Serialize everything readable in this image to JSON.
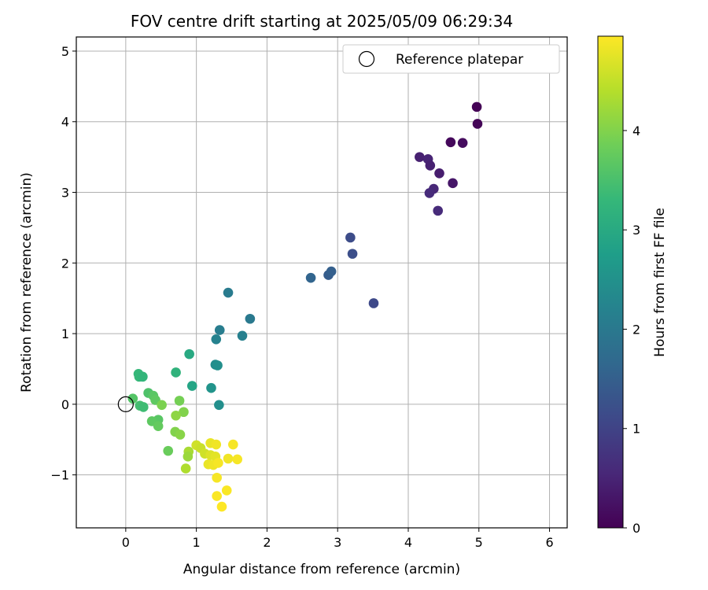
{
  "chart_data": {
    "type": "scatter",
    "title": "FOV centre drift starting at 2025/05/09 06:29:34",
    "xlabel": "Angular distance from reference (arcmin)",
    "ylabel": "Rotation from reference (arcmin)",
    "xlim": [
      -0.7,
      6.25
    ],
    "ylim": [
      -1.75,
      5.2
    ],
    "x_ticks": [
      0,
      1,
      2,
      3,
      4,
      5,
      6
    ],
    "y_ticks": [
      -1,
      0,
      1,
      2,
      3,
      4,
      5
    ],
    "y_tick_labels": [
      "−1",
      "0",
      "1",
      "2",
      "3",
      "4",
      "5"
    ],
    "grid": true,
    "legend": {
      "position": "top-right",
      "label": "Reference platepar"
    },
    "reference_point": {
      "x": 0,
      "y": 0
    },
    "colorbar": {
      "label": "Hours from first FF file",
      "range": [
        0,
        4.95
      ],
      "ticks": [
        0,
        1,
        2,
        3,
        4
      ],
      "colormap": [
        "#440154",
        "#482878",
        "#3e4989",
        "#31688e",
        "#26828e",
        "#1f9e89",
        "#35b779",
        "#6ece58",
        "#b5de2b",
        "#fde725"
      ]
    },
    "series": [
      {
        "points": [
          {
            "x": 4.97,
            "y": 4.21,
            "hours": 0.02
          },
          {
            "x": 4.98,
            "y": 3.97,
            "hours": 0.05
          },
          {
            "x": 4.6,
            "y": 3.71,
            "hours": 0.1
          },
          {
            "x": 4.77,
            "y": 3.7,
            "hours": 0.15
          },
          {
            "x": 4.16,
            "y": 3.5,
            "hours": 0.45
          },
          {
            "x": 4.28,
            "y": 3.47,
            "hours": 0.5
          },
          {
            "x": 4.31,
            "y": 3.38,
            "hours": 0.45
          },
          {
            "x": 4.44,
            "y": 3.27,
            "hours": 0.4
          },
          {
            "x": 4.63,
            "y": 3.13,
            "hours": 0.3
          },
          {
            "x": 4.36,
            "y": 3.05,
            "hours": 0.55
          },
          {
            "x": 4.3,
            "y": 2.99,
            "hours": 0.6
          },
          {
            "x": 4.42,
            "y": 2.74,
            "hours": 0.6
          },
          {
            "x": 3.18,
            "y": 2.36,
            "hours": 1.15
          },
          {
            "x": 3.21,
            "y": 2.13,
            "hours": 1.2
          },
          {
            "x": 2.62,
            "y": 1.79,
            "hours": 1.6
          },
          {
            "x": 2.87,
            "y": 1.83,
            "hours": 1.45
          },
          {
            "x": 2.91,
            "y": 1.88,
            "hours": 1.5
          },
          {
            "x": 3.51,
            "y": 1.43,
            "hours": 1.1
          },
          {
            "x": 1.45,
            "y": 1.58,
            "hours": 2.05
          },
          {
            "x": 1.76,
            "y": 1.21,
            "hours": 2.0
          },
          {
            "x": 1.33,
            "y": 1.05,
            "hours": 2.1
          },
          {
            "x": 1.65,
            "y": 0.97,
            "hours": 2.15
          },
          {
            "x": 1.28,
            "y": 0.92,
            "hours": 2.2
          },
          {
            "x": 0.9,
            "y": 0.71,
            "hours": 3.0
          },
          {
            "x": 1.27,
            "y": 0.56,
            "hours": 2.4
          },
          {
            "x": 1.3,
            "y": 0.55,
            "hours": 2.45
          },
          {
            "x": 0.71,
            "y": 0.45,
            "hours": 3.2
          },
          {
            "x": 0.18,
            "y": 0.43,
            "hours": 3.3
          },
          {
            "x": 0.19,
            "y": 0.39,
            "hours": 3.3
          },
          {
            "x": 0.24,
            "y": 0.39,
            "hours": 3.25
          },
          {
            "x": 0.94,
            "y": 0.26,
            "hours": 2.9
          },
          {
            "x": 1.21,
            "y": 0.23,
            "hours": 2.55
          },
          {
            "x": 0.32,
            "y": 0.16,
            "hours": 3.55
          },
          {
            "x": 0.39,
            "y": 0.12,
            "hours": 3.65
          },
          {
            "x": 0.1,
            "y": 0.08,
            "hours": 3.6
          },
          {
            "x": 0.42,
            "y": 0.06,
            "hours": 3.7
          },
          {
            "x": 0.76,
            "y": 0.05,
            "hours": 3.9
          },
          {
            "x": 0.2,
            "y": -0.02,
            "hours": 3.45
          },
          {
            "x": 0.25,
            "y": -0.04,
            "hours": 3.4
          },
          {
            "x": 0.51,
            "y": -0.01,
            "hours": 3.95
          },
          {
            "x": 1.32,
            "y": -0.01,
            "hours": 2.45
          },
          {
            "x": 0.82,
            "y": -0.11,
            "hours": 4.0
          },
          {
            "x": 0.71,
            "y": -0.16,
            "hours": 4.1
          },
          {
            "x": 0.46,
            "y": -0.22,
            "hours": 3.65
          },
          {
            "x": 0.37,
            "y": -0.24,
            "hours": 3.7
          },
          {
            "x": 0.46,
            "y": -0.31,
            "hours": 3.75
          },
          {
            "x": 0.7,
            "y": -0.39,
            "hours": 4.0
          },
          {
            "x": 0.77,
            "y": -0.43,
            "hours": 4.05
          },
          {
            "x": 1.2,
            "y": -0.55,
            "hours": 4.8
          },
          {
            "x": 1.28,
            "y": -0.57,
            "hours": 4.85
          },
          {
            "x": 1.52,
            "y": -0.57,
            "hours": 4.9
          },
          {
            "x": 1.0,
            "y": -0.58,
            "hours": 4.6
          },
          {
            "x": 1.06,
            "y": -0.62,
            "hours": 4.55
          },
          {
            "x": 0.6,
            "y": -0.66,
            "hours": 3.8
          },
          {
            "x": 0.89,
            "y": -0.67,
            "hours": 4.3
          },
          {
            "x": 1.12,
            "y": -0.7,
            "hours": 4.6
          },
          {
            "x": 1.2,
            "y": -0.72,
            "hours": 4.7
          },
          {
            "x": 0.88,
            "y": -0.74,
            "hours": 4.2
          },
          {
            "x": 1.27,
            "y": -0.74,
            "hours": 4.75
          },
          {
            "x": 1.45,
            "y": -0.77,
            "hours": 4.85
          },
          {
            "x": 1.58,
            "y": -0.78,
            "hours": 4.9
          },
          {
            "x": 1.17,
            "y": -0.85,
            "hours": 4.8
          },
          {
            "x": 1.24,
            "y": -0.86,
            "hours": 4.85
          },
          {
            "x": 1.31,
            "y": -0.83,
            "hours": 4.9
          },
          {
            "x": 0.85,
            "y": -0.91,
            "hours": 4.35
          },
          {
            "x": 1.29,
            "y": -1.04,
            "hours": 4.9
          },
          {
            "x": 1.43,
            "y": -1.22,
            "hours": 4.92
          },
          {
            "x": 1.29,
            "y": -1.3,
            "hours": 4.93
          },
          {
            "x": 1.36,
            "y": -1.45,
            "hours": 4.95
          }
        ]
      }
    ]
  }
}
